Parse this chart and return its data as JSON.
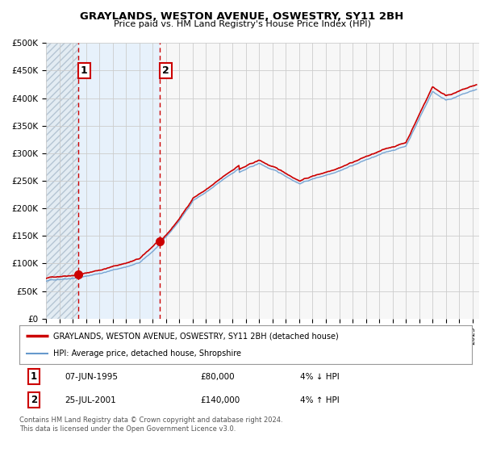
{
  "title": "GRAYLANDS, WESTON AVENUE, OSWESTRY, SY11 2BH",
  "subtitle": "Price paid vs. HM Land Registry's House Price Index (HPI)",
  "legend_line1": "GRAYLANDS, WESTON AVENUE, OSWESTRY, SY11 2BH (detached house)",
  "legend_line2": "HPI: Average price, detached house, Shropshire",
  "transaction1_date": "07-JUN-1995",
  "transaction1_price": "£80,000",
  "transaction1_hpi": "4% ↓ HPI",
  "transaction2_date": "25-JUL-2001",
  "transaction2_price": "£140,000",
  "transaction2_hpi": "4% ↑ HPI",
  "footnote": "Contains HM Land Registry data © Crown copyright and database right 2024.\nThis data is licensed under the Open Government Licence v3.0.",
  "red_color": "#cc0000",
  "blue_color": "#6699cc",
  "blue_fill_color": "#ddeeff",
  "hatch_fill_color": "#dde8f0",
  "grid_color": "#cccccc",
  "background_color": "#ffffff",
  "plot_bg_color": "#f7f7f7",
  "transaction1_x": 1995.44,
  "transaction1_y": 80000,
  "transaction2_x": 2001.56,
  "transaction2_y": 140000,
  "ylim": [
    0,
    500000
  ],
  "xlim_start": 1993.0,
  "xlim_end": 2025.5,
  "noise_seed": 42
}
